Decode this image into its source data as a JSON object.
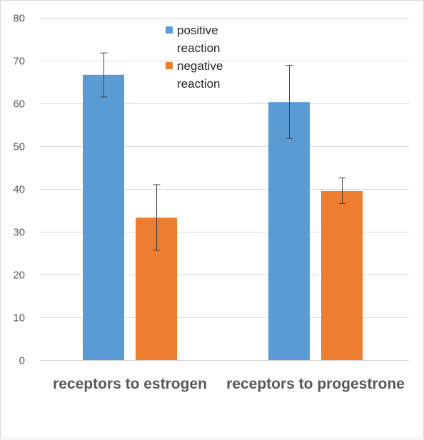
{
  "chart_data": {
    "type": "bar",
    "categories": [
      "receptors to estrogen",
      "receptors to progestrone"
    ],
    "series": [
      {
        "name": "positive reaction",
        "legend_lines": [
          "positive",
          "reaction"
        ],
        "color": "#5b9bd5",
        "values": [
          66.7,
          60.3
        ],
        "error_low": [
          61.5,
          51.8
        ],
        "error_high": [
          71.8,
          68.9
        ]
      },
      {
        "name": "negative reaction",
        "legend_lines": [
          "negative",
          "reaction"
        ],
        "color": "#ed7d31",
        "values": [
          33.3,
          39.5
        ],
        "error_low": [
          25.7,
          36.6
        ],
        "error_high": [
          41.0,
          42.6
        ]
      }
    ],
    "ylim": [
      0,
      80
    ],
    "yticks": [
      0,
      10,
      20,
      30,
      40,
      50,
      60,
      70,
      80
    ],
    "grid": true,
    "legend_position": "top-center"
  }
}
